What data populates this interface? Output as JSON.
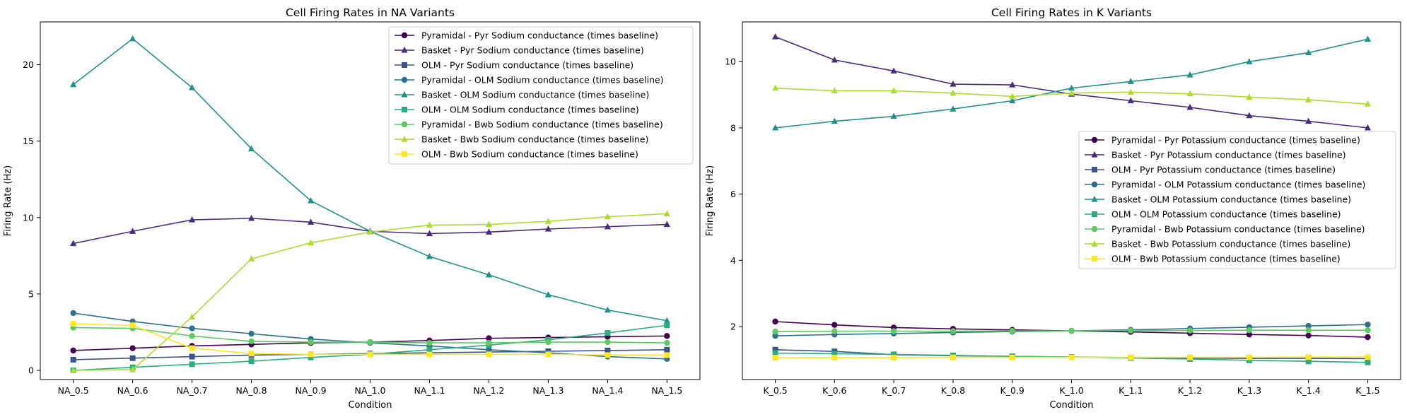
{
  "chart_data": [
    {
      "type": "line",
      "title": "Cell Firing Rates in NA Variants",
      "xlabel": "Condition",
      "ylabel": "Firing Rate (Hz)",
      "categories": [
        "NA_0.5",
        "NA_0.6",
        "NA_0.7",
        "NA_0.8",
        "NA_0.9",
        "NA_1.0",
        "NA_1.1",
        "NA_1.2",
        "NA_1.3",
        "NA_1.4",
        "NA_1.5"
      ],
      "ylim": [
        -0.6,
        22.8
      ],
      "yticks": [
        0,
        5,
        10,
        15,
        20
      ],
      "legend_position": "upper right",
      "series": [
        {
          "name": "Pyramidal - Pyr Sodium conductance (times baseline)",
          "marker": "circle",
          "color": "#440154",
          "values": [
            1.3,
            1.45,
            1.6,
            1.7,
            1.8,
            1.85,
            1.95,
            2.1,
            2.15,
            2.2,
            2.25
          ]
        },
        {
          "name": "Basket - Pyr Sodium conductance (times baseline)",
          "marker": "triangle",
          "color": "#472d7b",
          "values": [
            8.3,
            9.1,
            9.85,
            9.95,
            9.7,
            9.1,
            8.95,
            9.05,
            9.25,
            9.4,
            9.55
          ]
        },
        {
          "name": "OLM - Pyr Sodium conductance (times baseline)",
          "marker": "square",
          "color": "#3b528b",
          "values": [
            0.7,
            0.8,
            0.9,
            1.0,
            1.05,
            1.1,
            1.15,
            1.2,
            1.25,
            1.3,
            1.35
          ]
        },
        {
          "name": "Pyramidal - OLM Sodium conductance (times baseline)",
          "marker": "circle",
          "color": "#2c728e",
          "values": [
            3.75,
            3.2,
            2.75,
            2.4,
            2.05,
            1.8,
            1.6,
            1.35,
            1.15,
            0.9,
            0.75
          ]
        },
        {
          "name": "Basket - OLM Sodium conductance (times baseline)",
          "marker": "triangle",
          "color": "#21918c",
          "values": [
            18.7,
            21.7,
            18.5,
            14.5,
            11.1,
            9.1,
            7.45,
            6.25,
            4.95,
            3.95,
            3.25
          ]
        },
        {
          "name": "OLM - OLM Sodium conductance (times baseline)",
          "marker": "square",
          "color": "#28ae80",
          "values": [
            0.0,
            0.2,
            0.4,
            0.6,
            0.85,
            1.05,
            1.35,
            1.65,
            2.0,
            2.45,
            2.95
          ]
        },
        {
          "name": "Pyramidal - Bwb Sodium conductance (times baseline)",
          "marker": "circle",
          "color": "#5ec962",
          "values": [
            2.8,
            2.75,
            2.25,
            1.9,
            1.85,
            1.85,
            1.8,
            1.8,
            1.85,
            1.85,
            1.8
          ]
        },
        {
          "name": "Basket - Bwb Sodium conductance (times baseline)",
          "marker": "triangle",
          "color": "#addc30",
          "values": [
            0.0,
            0.05,
            3.5,
            7.3,
            8.35,
            9.05,
            9.5,
            9.55,
            9.75,
            10.05,
            10.25
          ]
        },
        {
          "name": "OLM - Bwb Sodium conductance (times baseline)",
          "marker": "square",
          "color": "#fde725",
          "values": [
            3.05,
            2.95,
            1.45,
            1.1,
            1.05,
            1.05,
            1.05,
            1.05,
            1.05,
            1.0,
            1.0
          ]
        }
      ]
    },
    {
      "type": "line",
      "title": "Cell Firing Rates in K Variants",
      "xlabel": "Condition",
      "ylabel": "Firing Rate (Hz)",
      "categories": [
        "K_0.5",
        "K_0.6",
        "K_0.7",
        "K_0.8",
        "K_0.9",
        "K_1.0",
        "K_1.1",
        "K_1.2",
        "K_1.3",
        "K_1.4",
        "K_1.5"
      ],
      "ylim": [
        0.4,
        11.2
      ],
      "yticks": [
        2,
        4,
        6,
        8,
        10
      ],
      "legend_position": "center right",
      "series": [
        {
          "name": "Pyramidal - Pyr Potassium conductance (times baseline)",
          "marker": "circle",
          "color": "#440154",
          "values": [
            2.15,
            2.05,
            1.97,
            1.93,
            1.9,
            1.87,
            1.84,
            1.8,
            1.76,
            1.73,
            1.68
          ]
        },
        {
          "name": "Basket - Pyr Potassium conductance (times baseline)",
          "marker": "triangle",
          "color": "#472d7b",
          "values": [
            10.75,
            10.05,
            9.72,
            9.32,
            9.3,
            9.02,
            8.82,
            8.62,
            8.37,
            8.2,
            8.0
          ]
        },
        {
          "name": "OLM - Pyr Potassium conductance (times baseline)",
          "marker": "square",
          "color": "#3b528b",
          "values": [
            1.3,
            1.25,
            1.15,
            1.12,
            1.1,
            1.08,
            1.06,
            1.05,
            1.04,
            1.04,
            1.03
          ]
        },
        {
          "name": "Pyramidal - OLM Potassium conductance (times baseline)",
          "marker": "circle",
          "color": "#2c728e",
          "values": [
            1.72,
            1.76,
            1.79,
            1.82,
            1.85,
            1.87,
            1.9,
            1.94,
            1.98,
            2.02,
            2.06
          ]
        },
        {
          "name": "Basket - OLM Potassium conductance (times baseline)",
          "marker": "triangle",
          "color": "#21918c",
          "values": [
            8.0,
            8.2,
            8.35,
            8.57,
            8.82,
            9.2,
            9.4,
            9.6,
            10.0,
            10.27,
            10.68
          ]
        },
        {
          "name": "OLM - OLM Potassium conductance (times baseline)",
          "marker": "square",
          "color": "#28ae80",
          "values": [
            1.2,
            1.18,
            1.16,
            1.13,
            1.1,
            1.08,
            1.05,
            1.02,
            0.98,
            0.95,
            0.92
          ]
        },
        {
          "name": "Pyramidal - Bwb Potassium conductance (times baseline)",
          "marker": "circle",
          "color": "#5ec962",
          "values": [
            1.85,
            1.86,
            1.86,
            1.86,
            1.87,
            1.87,
            1.88,
            1.88,
            1.89,
            1.89,
            1.89
          ]
        },
        {
          "name": "Basket - Bwb Potassium conductance (times baseline)",
          "marker": "triangle",
          "color": "#addc30",
          "values": [
            9.2,
            9.12,
            9.12,
            9.05,
            8.95,
            9.05,
            9.08,
            9.03,
            8.93,
            8.85,
            8.72
          ]
        },
        {
          "name": "OLM - Bwb Potassium conductance (times baseline)",
          "marker": "square",
          "color": "#fde725",
          "values": [
            1.06,
            1.06,
            1.06,
            1.07,
            1.07,
            1.07,
            1.07,
            1.07,
            1.07,
            1.08,
            1.08
          ]
        }
      ]
    }
  ]
}
